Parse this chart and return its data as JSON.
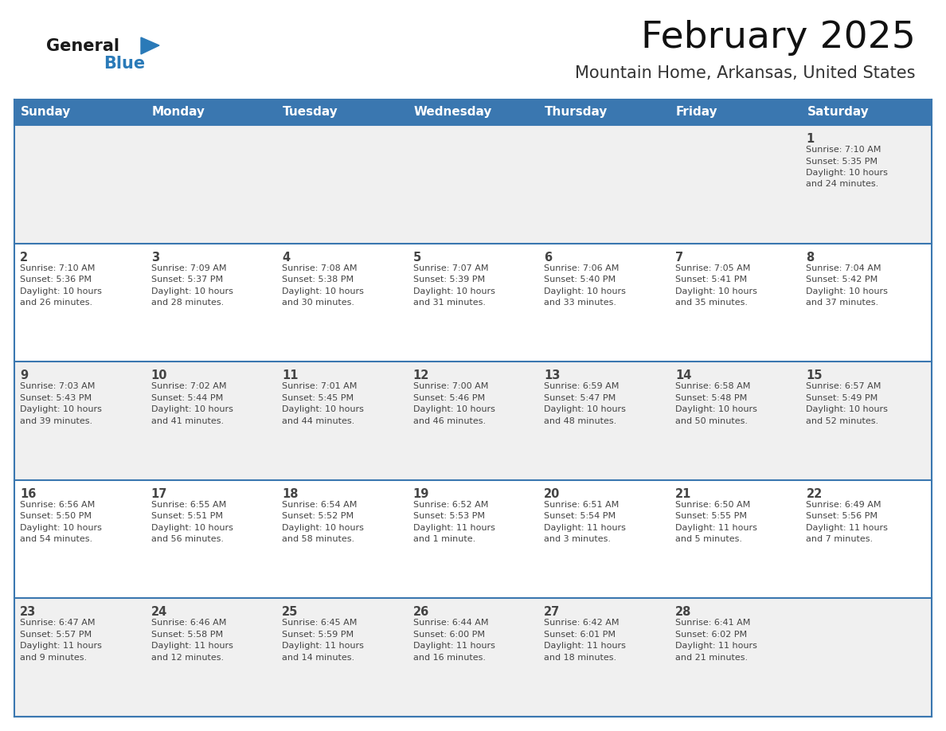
{
  "title": "February 2025",
  "subtitle": "Mountain Home, Arkansas, United States",
  "header_color": "#3a77b0",
  "header_text_color": "#ffffff",
  "day_names": [
    "Sunday",
    "Monday",
    "Tuesday",
    "Wednesday",
    "Thursday",
    "Friday",
    "Saturday"
  ],
  "bg_color": "#ffffff",
  "row_bg": [
    "#f0f0f0",
    "#ffffff",
    "#f0f0f0",
    "#ffffff",
    "#f0f0f0"
  ],
  "border_color": "#3a77b0",
  "text_color": "#444444",
  "logo_general_color": "#1a1a1a",
  "logo_blue_color": "#2a7ab8",
  "days": [
    {
      "day": 1,
      "col": 6,
      "row": 0,
      "sunrise": "7:10 AM",
      "sunset": "5:35 PM",
      "daylight": "10 hours and 24 minutes."
    },
    {
      "day": 2,
      "col": 0,
      "row": 1,
      "sunrise": "7:10 AM",
      "sunset": "5:36 PM",
      "daylight": "10 hours and 26 minutes."
    },
    {
      "day": 3,
      "col": 1,
      "row": 1,
      "sunrise": "7:09 AM",
      "sunset": "5:37 PM",
      "daylight": "10 hours and 28 minutes."
    },
    {
      "day": 4,
      "col": 2,
      "row": 1,
      "sunrise": "7:08 AM",
      "sunset": "5:38 PM",
      "daylight": "10 hours and 30 minutes."
    },
    {
      "day": 5,
      "col": 3,
      "row": 1,
      "sunrise": "7:07 AM",
      "sunset": "5:39 PM",
      "daylight": "10 hours and 31 minutes."
    },
    {
      "day": 6,
      "col": 4,
      "row": 1,
      "sunrise": "7:06 AM",
      "sunset": "5:40 PM",
      "daylight": "10 hours and 33 minutes."
    },
    {
      "day": 7,
      "col": 5,
      "row": 1,
      "sunrise": "7:05 AM",
      "sunset": "5:41 PM",
      "daylight": "10 hours and 35 minutes."
    },
    {
      "day": 8,
      "col": 6,
      "row": 1,
      "sunrise": "7:04 AM",
      "sunset": "5:42 PM",
      "daylight": "10 hours and 37 minutes."
    },
    {
      "day": 9,
      "col": 0,
      "row": 2,
      "sunrise": "7:03 AM",
      "sunset": "5:43 PM",
      "daylight": "10 hours and 39 minutes."
    },
    {
      "day": 10,
      "col": 1,
      "row": 2,
      "sunrise": "7:02 AM",
      "sunset": "5:44 PM",
      "daylight": "10 hours and 41 minutes."
    },
    {
      "day": 11,
      "col": 2,
      "row": 2,
      "sunrise": "7:01 AM",
      "sunset": "5:45 PM",
      "daylight": "10 hours and 44 minutes."
    },
    {
      "day": 12,
      "col": 3,
      "row": 2,
      "sunrise": "7:00 AM",
      "sunset": "5:46 PM",
      "daylight": "10 hours and 46 minutes."
    },
    {
      "day": 13,
      "col": 4,
      "row": 2,
      "sunrise": "6:59 AM",
      "sunset": "5:47 PM",
      "daylight": "10 hours and 48 minutes."
    },
    {
      "day": 14,
      "col": 5,
      "row": 2,
      "sunrise": "6:58 AM",
      "sunset": "5:48 PM",
      "daylight": "10 hours and 50 minutes."
    },
    {
      "day": 15,
      "col": 6,
      "row": 2,
      "sunrise": "6:57 AM",
      "sunset": "5:49 PM",
      "daylight": "10 hours and 52 minutes."
    },
    {
      "day": 16,
      "col": 0,
      "row": 3,
      "sunrise": "6:56 AM",
      "sunset": "5:50 PM",
      "daylight": "10 hours and 54 minutes."
    },
    {
      "day": 17,
      "col": 1,
      "row": 3,
      "sunrise": "6:55 AM",
      "sunset": "5:51 PM",
      "daylight": "10 hours and 56 minutes."
    },
    {
      "day": 18,
      "col": 2,
      "row": 3,
      "sunrise": "6:54 AM",
      "sunset": "5:52 PM",
      "daylight": "10 hours and 58 minutes."
    },
    {
      "day": 19,
      "col": 3,
      "row": 3,
      "sunrise": "6:52 AM",
      "sunset": "5:53 PM",
      "daylight": "11 hours and 1 minute."
    },
    {
      "day": 20,
      "col": 4,
      "row": 3,
      "sunrise": "6:51 AM",
      "sunset": "5:54 PM",
      "daylight": "11 hours and 3 minutes."
    },
    {
      "day": 21,
      "col": 5,
      "row": 3,
      "sunrise": "6:50 AM",
      "sunset": "5:55 PM",
      "daylight": "11 hours and 5 minutes."
    },
    {
      "day": 22,
      "col": 6,
      "row": 3,
      "sunrise": "6:49 AM",
      "sunset": "5:56 PM",
      "daylight": "11 hours and 7 minutes."
    },
    {
      "day": 23,
      "col": 0,
      "row": 4,
      "sunrise": "6:47 AM",
      "sunset": "5:57 PM",
      "daylight": "11 hours and 9 minutes."
    },
    {
      "day": 24,
      "col": 1,
      "row": 4,
      "sunrise": "6:46 AM",
      "sunset": "5:58 PM",
      "daylight": "11 hours and 12 minutes."
    },
    {
      "day": 25,
      "col": 2,
      "row": 4,
      "sunrise": "6:45 AM",
      "sunset": "5:59 PM",
      "daylight": "11 hours and 14 minutes."
    },
    {
      "day": 26,
      "col": 3,
      "row": 4,
      "sunrise": "6:44 AM",
      "sunset": "6:00 PM",
      "daylight": "11 hours and 16 minutes."
    },
    {
      "day": 27,
      "col": 4,
      "row": 4,
      "sunrise": "6:42 AM",
      "sunset": "6:01 PM",
      "daylight": "11 hours and 18 minutes."
    },
    {
      "day": 28,
      "col": 5,
      "row": 4,
      "sunrise": "6:41 AM",
      "sunset": "6:02 PM",
      "daylight": "11 hours and 21 minutes."
    }
  ]
}
